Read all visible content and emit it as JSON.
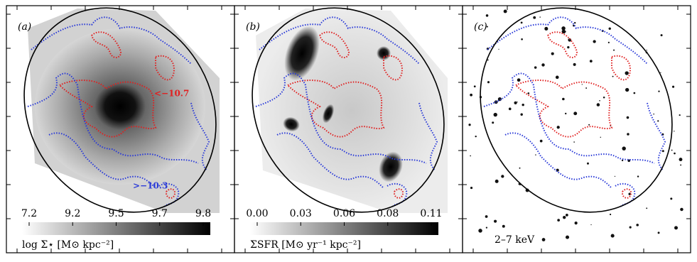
{
  "chart_data": [
    {
      "type": "image",
      "panel_label": "(a)",
      "colorbar": {
        "label": "log Σ⋆ [M⊙ kpc⁻²]",
        "ticks": [
          7.2,
          9.2,
          9.5,
          9.7,
          9.8
        ]
      },
      "annotations": [
        {
          "text": "<−10.7",
          "color": "#e02020"
        },
        {
          "text": ">−10.3",
          "color": "#2a3ad8"
        }
      ]
    },
    {
      "type": "image",
      "panel_label": "(b)",
      "colorbar": {
        "label": "ΣSFR [M⊙ yr⁻¹ kpc⁻²]",
        "ticks": [
          {
            "value": 0,
            "label": "0.00"
          },
          0.03,
          0.06,
          0.08,
          0.11
        ]
      }
    },
    {
      "type": "image",
      "panel_label": "(c)",
      "band_label": "2–7 keV"
    }
  ]
}
